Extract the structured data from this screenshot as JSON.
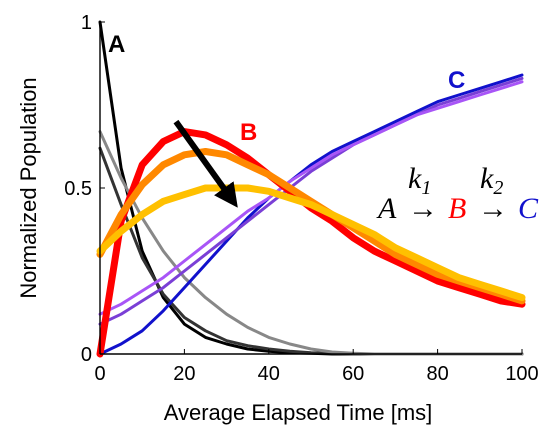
{
  "chart_data": {
    "type": "line",
    "title": "",
    "xlabel": "Average Elapsed Time [ms]",
    "ylabel": "Normalized Population",
    "xlim": [
      0,
      100
    ],
    "ylim": [
      0,
      1
    ],
    "x_ticks": [
      "0",
      "20",
      "40",
      "60",
      "80",
      "100"
    ],
    "y_ticks": [
      "0",
      "0.5",
      "1"
    ],
    "grid": false,
    "legend": "none",
    "series_labels": [
      {
        "text": "A",
        "color": "#000000"
      },
      {
        "text": "B",
        "color": "#ff0000"
      },
      {
        "text": "C",
        "color": "#1111cc"
      }
    ],
    "x": [
      0,
      5,
      10,
      15,
      20,
      25,
      30,
      35,
      40,
      45,
      50,
      55,
      60,
      65,
      70,
      75,
      80,
      85,
      90,
      95,
      100
    ],
    "series": [
      {
        "color": "#000000",
        "width": 3,
        "values": [
          1.0,
          0.56,
          0.31,
          0.17,
          0.09,
          0.05,
          0.03,
          0.015,
          0.008,
          0.004,
          0.002,
          0.0,
          0.0,
          0.0,
          0.0,
          0.0,
          0.0,
          0.0,
          0.0,
          0.0,
          0.0
        ]
      },
      {
        "color": "#333333",
        "width": 3,
        "values": [
          0.62,
          0.45,
          0.29,
          0.18,
          0.11,
          0.07,
          0.04,
          0.025,
          0.015,
          0.008,
          0.004,
          0.002,
          0.0,
          0.0,
          0.0,
          0.0,
          0.0,
          0.0,
          0.0,
          0.0,
          0.0
        ]
      },
      {
        "color": "#888888",
        "width": 3,
        "values": [
          0.67,
          0.53,
          0.41,
          0.31,
          0.23,
          0.17,
          0.12,
          0.08,
          0.05,
          0.03,
          0.015,
          0.006,
          0.002,
          0.0,
          0.0,
          0.0,
          0.0,
          0.0,
          0.0,
          0.0,
          0.0
        ]
      },
      {
        "color": "#1111cc",
        "width": 3,
        "values": [
          0.0,
          0.03,
          0.07,
          0.13,
          0.2,
          0.27,
          0.34,
          0.41,
          0.47,
          0.52,
          0.57,
          0.61,
          0.64,
          0.67,
          0.7,
          0.73,
          0.76,
          0.78,
          0.8,
          0.82,
          0.84
        ]
      },
      {
        "color": "#7a3fd6",
        "width": 3,
        "values": [
          0.09,
          0.12,
          0.16,
          0.2,
          0.25,
          0.3,
          0.35,
          0.4,
          0.45,
          0.5,
          0.55,
          0.59,
          0.63,
          0.66,
          0.69,
          0.72,
          0.75,
          0.77,
          0.79,
          0.81,
          0.83
        ]
      },
      {
        "color": "#a855f7",
        "width": 3,
        "values": [
          0.12,
          0.15,
          0.19,
          0.23,
          0.28,
          0.33,
          0.38,
          0.43,
          0.47,
          0.52,
          0.56,
          0.6,
          0.63,
          0.66,
          0.69,
          0.72,
          0.74,
          0.76,
          0.78,
          0.8,
          0.82
        ]
      },
      {
        "color": "#ff0000",
        "width": 7,
        "values": [
          0.0,
          0.4,
          0.57,
          0.64,
          0.67,
          0.66,
          0.63,
          0.59,
          0.54,
          0.49,
          0.44,
          0.4,
          0.35,
          0.31,
          0.28,
          0.25,
          0.22,
          0.2,
          0.18,
          0.16,
          0.15
        ]
      },
      {
        "color": "#ff8800",
        "width": 7,
        "values": [
          0.3,
          0.42,
          0.51,
          0.57,
          0.6,
          0.61,
          0.6,
          0.57,
          0.54,
          0.5,
          0.46,
          0.42,
          0.38,
          0.34,
          0.3,
          0.27,
          0.24,
          0.22,
          0.2,
          0.18,
          0.16
        ]
      },
      {
        "color": "#ffc000",
        "width": 7,
        "values": [
          0.31,
          0.37,
          0.42,
          0.46,
          0.48,
          0.5,
          0.5,
          0.5,
          0.49,
          0.47,
          0.45,
          0.42,
          0.39,
          0.36,
          0.32,
          0.29,
          0.26,
          0.23,
          0.21,
          0.19,
          0.17
        ]
      }
    ],
    "annotations": {
      "arrow": {
        "from": [
          18,
          0.7
        ],
        "to": [
          31,
          0.47
        ]
      },
      "equation": {
        "species": [
          "A",
          "B",
          "C"
        ],
        "rates": [
          "k",
          "k"
        ],
        "rate_subscripts": [
          "1",
          "2"
        ],
        "arrow": "→"
      }
    }
  }
}
